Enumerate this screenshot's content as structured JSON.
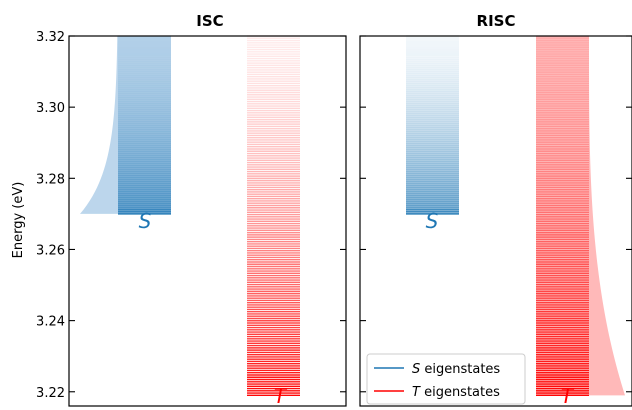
{
  "figure": {
    "ylabel": "Energy (eV)"
  },
  "chart_data": [
    {
      "type": "bar",
      "title": "ISC",
      "xlabel": "",
      "ylabel": "Energy (eV)",
      "ylim": [
        3.216,
        3.32
      ],
      "yticks": [
        3.22,
        3.24,
        3.26,
        3.28,
        3.3,
        3.32
      ],
      "grid": false,
      "series": [
        {
          "name": "S eigenstates",
          "symbol": "S",
          "color": "#1f77b4",
          "energy_min": 3.27,
          "energy_max": 3.32,
          "levels_count": 90,
          "distribution_side": "left"
        },
        {
          "name": "T eigenstates",
          "symbol": "T",
          "color": "#ff0000",
          "energy_min": 3.219,
          "energy_max": 3.32,
          "levels_count": 160
        }
      ]
    },
    {
      "type": "bar",
      "title": "RISC",
      "xlabel": "",
      "ylabel": "",
      "ylim": [
        3.216,
        3.32
      ],
      "yticks": [
        3.22,
        3.24,
        3.26,
        3.28,
        3.3,
        3.32
      ],
      "grid": false,
      "legend": {
        "placement": "lower-left",
        "entries": [
          {
            "prefix": "S",
            "suffix": " eigenstates",
            "color": "#1f77b4"
          },
          {
            "prefix": "T",
            "suffix": " eigenstates",
            "color": "#ff0000"
          }
        ]
      },
      "series": [
        {
          "name": "S eigenstates",
          "symbol": "S",
          "color": "#1f77b4",
          "energy_min": 3.27,
          "energy_max": 3.32,
          "levels_count": 90
        },
        {
          "name": "T eigenstates",
          "symbol": "T",
          "color": "#ff0000",
          "energy_min": 3.219,
          "energy_max": 3.32,
          "levels_count": 160,
          "distribution_side": "right"
        }
      ]
    }
  ]
}
